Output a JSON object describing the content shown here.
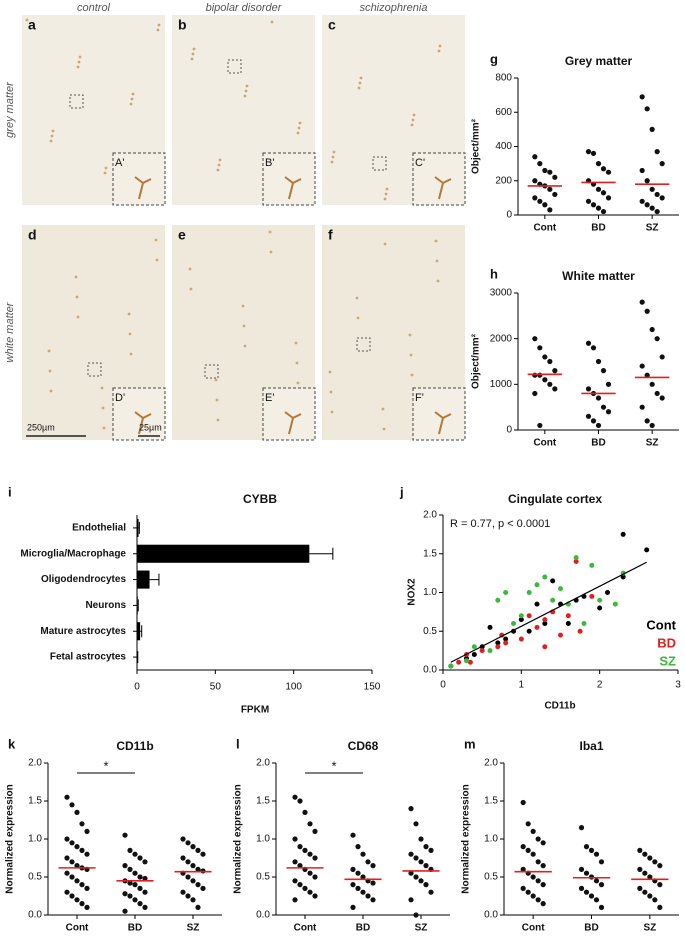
{
  "image_panels": {
    "columns": [
      "control",
      "bipolar disorder",
      "schizophrenia"
    ],
    "rows": [
      "grey matter",
      "white matter"
    ],
    "panels": [
      {
        "letter": "a",
        "inset": "A'"
      },
      {
        "letter": "b",
        "inset": "B'"
      },
      {
        "letter": "c",
        "inset": "C'"
      },
      {
        "letter": "d",
        "inset": "D'"
      },
      {
        "letter": "e",
        "inset": "E'"
      },
      {
        "letter": "f",
        "inset": "F'"
      }
    ],
    "scale_bars": [
      "250µm",
      "25µm"
    ]
  },
  "chart_data": [
    {
      "type": "dotplot",
      "panel": "g",
      "title": "Grey matter",
      "ylabel": "Object/mm²",
      "categories": [
        "Cont",
        "BD",
        "SZ"
      ],
      "points": [
        [
          340,
          300,
          260,
          250,
          220,
          200,
          180,
          170,
          150,
          120,
          100,
          80,
          60,
          30
        ],
        [
          370,
          360,
          300,
          270,
          250,
          200,
          180,
          150,
          130,
          100,
          80,
          60,
          40,
          20
        ],
        [
          690,
          620,
          500,
          370,
          300,
          260,
          200,
          150,
          120,
          100,
          80,
          60,
          40,
          20
        ]
      ],
      "means": [
        170,
        190,
        180
      ],
      "mean_color": "#e02020",
      "color": "#111111",
      "ylim": [
        0,
        800
      ],
      "yticks": [
        0,
        200,
        400,
        600,
        800
      ]
    },
    {
      "type": "dotplot",
      "panel": "h",
      "title": "White matter",
      "ylabel": "Object/mm²",
      "categories": [
        "Cont",
        "BD",
        "SZ"
      ],
      "points": [
        [
          2000,
          1800,
          1600,
          1500,
          1300,
          1200,
          1200,
          1100,
          1000,
          900,
          800,
          100
        ],
        [
          1900,
          1800,
          1500,
          1300,
          1000,
          900,
          800,
          700,
          500,
          400,
          300,
          200,
          100
        ],
        [
          2800,
          2600,
          2200,
          2000,
          1600,
          1400,
          1200,
          1000,
          800,
          700,
          500,
          200,
          100
        ]
      ],
      "means": [
        1220,
        800,
        1150
      ],
      "mean_color": "#e02020",
      "color": "#111111",
      "ylim": [
        0,
        3000
      ],
      "yticks": [
        0,
        1000,
        2000,
        3000
      ]
    },
    {
      "type": "hbar",
      "panel": "i",
      "title": "CYBB",
      "xlabel": "FPKM",
      "categories": [
        "Endothelial",
        "Microglia/Macrophage",
        "Oligodendrocytes",
        "Neurons",
        "Mature astrocytes",
        "Fetal astrocytes"
      ],
      "values": [
        1,
        110,
        8,
        0.5,
        2,
        0.3
      ],
      "errors": [
        0.5,
        15,
        6,
        0.3,
        1,
        0.2
      ],
      "color": "#000000",
      "xlim": [
        0,
        150
      ],
      "xticks": [
        0,
        50,
        100,
        150
      ]
    },
    {
      "type": "scatter",
      "panel": "j",
      "title": "Cingulate cortex",
      "xlabel": "CD11b",
      "ylabel": "NOX2",
      "annotation": "R = 0.77, p  < 0.0001",
      "series": [
        {
          "name": "Cont",
          "color": "#000000",
          "x": [
            0.1,
            0.3,
            0.4,
            0.5,
            0.6,
            0.7,
            0.8,
            0.9,
            1.0,
            1.1,
            1.2,
            1.3,
            1.4,
            1.5,
            1.6,
            1.7,
            1.8,
            2.0,
            2.1,
            2.3,
            2.6,
            2.3
          ],
          "y": [
            0.05,
            0.15,
            0.2,
            0.3,
            0.55,
            0.35,
            0.4,
            0.5,
            0.65,
            0.5,
            0.85,
            0.6,
            1.15,
            0.85,
            0.6,
            0.9,
            0.95,
            0.8,
            1.0,
            1.75,
            1.55,
            1.2
          ]
        },
        {
          "name": "BD",
          "color": "#e02020",
          "x": [
            0.2,
            0.3,
            0.35,
            0.5,
            0.7,
            0.75,
            0.8,
            1.0,
            1.1,
            1.2,
            1.3,
            1.4,
            1.5,
            1.6,
            1.7,
            1.75,
            1.9,
            1.3
          ],
          "y": [
            0.1,
            0.2,
            0.1,
            0.25,
            0.3,
            0.45,
            0.35,
            0.4,
            0.7,
            0.55,
            0.65,
            0.75,
            0.45,
            0.7,
            1.4,
            0.5,
            0.95,
            0.3
          ]
        },
        {
          "name": "SZ",
          "color": "#3cb83c",
          "x": [
            0.1,
            0.3,
            0.4,
            0.6,
            0.7,
            0.8,
            0.9,
            1.0,
            1.1,
            1.2,
            1.3,
            1.4,
            1.5,
            1.6,
            1.7,
            1.8,
            2.0,
            2.2,
            2.3,
            1.9
          ],
          "y": [
            0.05,
            0.12,
            0.3,
            0.25,
            0.9,
            1.0,
            0.6,
            0.7,
            1.0,
            1.1,
            1.2,
            0.9,
            1.05,
            0.85,
            1.45,
            0.6,
            0.9,
            0.85,
            1.25,
            1.35
          ]
        }
      ],
      "fit": {
        "x": [
          0.1,
          2.6
        ],
        "y": [
          0.1,
          1.39
        ]
      },
      "xlim": [
        0,
        3
      ],
      "xticks": [
        0,
        1,
        2,
        3
      ],
      "ylim": [
        0,
        2
      ],
      "yticks": [
        {
          "value": 0,
          "label": "0.0"
        },
        {
          "value": 0.5,
          "label": "0.5"
        },
        {
          "value": 1,
          "label": "1.0"
        },
        {
          "value": 1.5,
          "label": "1.5"
        },
        {
          "value": 2,
          "label": "2.0"
        }
      ]
    },
    {
      "type": "dotplot",
      "panel": "k",
      "title": "CD11b",
      "ylabel": "Normalized expression",
      "significance": "*",
      "categories": [
        "Cont",
        "BD",
        "SZ"
      ],
      "points": [
        [
          1.55,
          1.45,
          1.35,
          1.2,
          1.1,
          1.0,
          0.95,
          0.9,
          0.85,
          0.8,
          0.75,
          0.7,
          0.65,
          0.62,
          0.6,
          0.55,
          0.5,
          0.45,
          0.4,
          0.35,
          0.3,
          0.25,
          0.2,
          0.15,
          0.1
        ],
        [
          1.05,
          0.85,
          0.8,
          0.75,
          0.7,
          0.65,
          0.6,
          0.55,
          0.5,
          0.48,
          0.45,
          0.42,
          0.4,
          0.35,
          0.3,
          0.28,
          0.25,
          0.2,
          0.15,
          0.1,
          0.05
        ],
        [
          1.0,
          0.95,
          0.9,
          0.85,
          0.8,
          0.75,
          0.7,
          0.65,
          0.6,
          0.58,
          0.55,
          0.5,
          0.45,
          0.4,
          0.35,
          0.3,
          0.25,
          0.2,
          0.1
        ]
      ],
      "means": [
        0.62,
        0.45,
        0.57
      ],
      "mean_color": "#e02020",
      "color": "#111111",
      "ylim": [
        0,
        2
      ],
      "yticks": [
        {
          "value": 0,
          "label": "0.0"
        },
        {
          "value": 0.5,
          "label": "0.5"
        },
        {
          "value": 1,
          "label": "1.0"
        },
        {
          "value": 1.5,
          "label": "1.5"
        },
        {
          "value": 2,
          "label": "2.0"
        }
      ]
    },
    {
      "type": "dotplot",
      "panel": "l",
      "title": "CD68",
      "ylabel": "Normalized expression",
      "significance": "*",
      "categories": [
        "Cont",
        "BD",
        "SZ"
      ],
      "points": [
        [
          1.55,
          1.5,
          1.35,
          1.2,
          1.1,
          1.0,
          0.9,
          0.85,
          0.8,
          0.75,
          0.7,
          0.65,
          0.6,
          0.55,
          0.5,
          0.45,
          0.4,
          0.35,
          0.3,
          0.25,
          0.2
        ],
        [
          1.05,
          0.9,
          0.8,
          0.7,
          0.65,
          0.6,
          0.55,
          0.5,
          0.45,
          0.42,
          0.4,
          0.35,
          0.3,
          0.25,
          0.2,
          0.1
        ],
        [
          1.4,
          1.2,
          1.0,
          0.9,
          0.85,
          0.8,
          0.75,
          0.7,
          0.65,
          0.6,
          0.55,
          0.5,
          0.45,
          0.4,
          0.3,
          0.2,
          0.0
        ]
      ],
      "means": [
        0.62,
        0.47,
        0.58
      ],
      "mean_color": "#e02020",
      "color": "#111111",
      "ylim": [
        0,
        2
      ],
      "yticks": [
        {
          "value": 0,
          "label": "0.0"
        },
        {
          "value": 0.5,
          "label": "0.5"
        },
        {
          "value": 1,
          "label": "1.0"
        },
        {
          "value": 1.5,
          "label": "1.5"
        },
        {
          "value": 2,
          "label": "2.0"
        }
      ]
    },
    {
      "type": "dotplot",
      "panel": "m",
      "title": "Iba1",
      "ylabel": "Normalized expression",
      "categories": [
        "Cont",
        "BD",
        "SZ"
      ],
      "points": [
        [
          1.48,
          1.2,
          1.1,
          1.0,
          0.95,
          0.9,
          0.85,
          0.8,
          0.7,
          0.65,
          0.6,
          0.55,
          0.5,
          0.45,
          0.4,
          0.35,
          0.3,
          0.25,
          0.2,
          0.15
        ],
        [
          1.15,
          0.9,
          0.85,
          0.8,
          0.7,
          0.6,
          0.55,
          0.5,
          0.45,
          0.4,
          0.35,
          0.3,
          0.25,
          0.2,
          0.1
        ],
        [
          0.85,
          0.8,
          0.75,
          0.7,
          0.65,
          0.6,
          0.55,
          0.5,
          0.45,
          0.4,
          0.35,
          0.3,
          0.25,
          0.2,
          0.1
        ]
      ],
      "means": [
        0.57,
        0.49,
        0.47
      ],
      "mean_color": "#e02020",
      "color": "#111111",
      "ylim": [
        0,
        2
      ],
      "yticks": [
        {
          "value": 0,
          "label": "0.0"
        },
        {
          "value": 0.5,
          "label": "0.5"
        },
        {
          "value": 1,
          "label": "1.0"
        },
        {
          "value": 1.5,
          "label": "1.5"
        },
        {
          "value": 2,
          "label": "2.0"
        }
      ]
    }
  ]
}
